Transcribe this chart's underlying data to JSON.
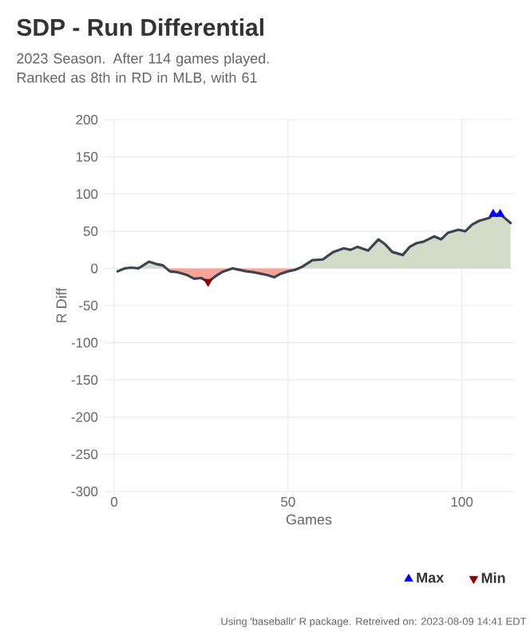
{
  "chart_data": {
    "type": "line",
    "title": "SDP - Run Differential",
    "subtitle": "2023 Season. After 114 games played. Ranked as 8th in RD in MLB, with 61",
    "xlabel": "Games",
    "ylabel": "R Diff",
    "annotations": [
      "Using 'baseballr' R package. Retreived on: 2023-08-09 14:41 EDT"
    ],
    "x": [
      1,
      3,
      5,
      7,
      10,
      12,
      14,
      15,
      16,
      18,
      21,
      23,
      25,
      27,
      29,
      31,
      34,
      36,
      38,
      40,
      44,
      46,
      48,
      50,
      52,
      53,
      54,
      57,
      60,
      63,
      66,
      68,
      70,
      73,
      76,
      78,
      80,
      83,
      85,
      87,
      89,
      92,
      94,
      96,
      99,
      101,
      103,
      105,
      108,
      109,
      111,
      114
    ],
    "series": [
      {
        "type": "area",
        "color": "#d3dcc9",
        "values": [
          null,
          0,
          1,
          0,
          9,
          6,
          4,
          0,
          null,
          null,
          null,
          null,
          null,
          null,
          null,
          null,
          null,
          null,
          null,
          null,
          null,
          null,
          null,
          null,
          null,
          0,
          2,
          11,
          12,
          22,
          27,
          25,
          29,
          24,
          39,
          32,
          22,
          18,
          29,
          34,
          36,
          43,
          39,
          48,
          52,
          50,
          59,
          64,
          68,
          73,
          73,
          61
        ]
      },
      {
        "type": "area",
        "color": "#f7a499",
        "values": [
          null,
          null,
          null,
          null,
          null,
          null,
          null,
          0,
          -4,
          -5,
          -9,
          -14,
          -13,
          -18,
          -11,
          -5,
          0,
          -2,
          -4,
          -5,
          -9,
          -12,
          -7,
          -4,
          -2,
          0,
          null,
          null,
          null,
          null,
          null,
          null,
          null,
          null,
          null,
          null,
          null,
          null,
          null,
          null,
          null,
          null,
          null,
          null,
          null,
          null,
          null,
          null,
          null,
          null,
          null,
          null
        ]
      },
      {
        "color": "#3c4452",
        "values": [
          -4,
          0,
          1,
          0,
          9,
          6,
          4,
          0,
          -4,
          -5,
          -9,
          -14,
          -13,
          -18,
          -11,
          -5,
          0,
          -2,
          -4,
          -5,
          -9,
          -12,
          -7,
          -4,
          -2,
          0,
          2,
          11,
          12,
          22,
          27,
          25,
          29,
          24,
          39,
          32,
          22,
          18,
          29,
          34,
          36,
          43,
          39,
          48,
          52,
          50,
          59,
          64,
          68,
          73,
          73,
          61
        ]
      },
      {
        "type": "scatter",
        "name": "Max",
        "color": "#0000ff",
        "marker": "triangle",
        "x": [
          109,
          111
        ],
        "values": [
          73,
          73
        ]
      },
      {
        "type": "scatter",
        "name": "Min",
        "color": "#8b0000",
        "marker": "triangle-down",
        "x": [
          27
        ],
        "values": [
          -18
        ]
      }
    ],
    "xlim": [
      -3,
      115
    ],
    "ylim": [
      -300,
      200
    ],
    "xticks": [
      0,
      50,
      100
    ],
    "yticks": [
      -300,
      -250,
      -200,
      -150,
      -100,
      -50,
      0,
      50,
      100,
      150,
      200
    ],
    "grid": true,
    "legend": "bottom right"
  }
}
